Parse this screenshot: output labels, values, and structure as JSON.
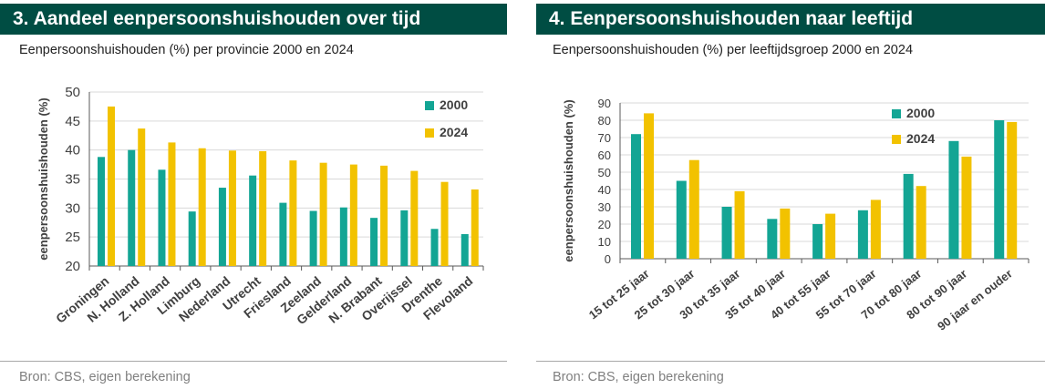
{
  "colors": {
    "header_bg": "#004d43",
    "series_2000": "#13a594",
    "series_2024": "#f2c200",
    "grid": "#d9d9d9",
    "axis": "#595959",
    "tick_text": "#404040"
  },
  "panels": [
    {
      "header": "3. Aandeel eenpersoonshuishouden over tijd",
      "subtitle": "Eenpersoonshuishouden (%) per provincie 2000 en 2024",
      "source": "Bron: CBS, eigen berekening"
    },
    {
      "header": "4. Eenpersoonshuishouden naar leeftijd",
      "subtitle": "Eenpersoonshuishouden (%) per leeftijdsgroep 2000 en 2024",
      "source": "Bron: CBS, eigen berekening"
    }
  ],
  "chart_data": [
    {
      "type": "bar",
      "title": "3. Aandeel eenpersoonshuishouden over tijd",
      "subtitle": "Eenpersoonshuishouden (%) per provincie 2000 en 2024",
      "xlabel": "",
      "ylabel": "eenpersoonshuishouden (%)",
      "ylim": [
        20,
        50
      ],
      "yticks": [
        20,
        25,
        30,
        35,
        40,
        45,
        50
      ],
      "grid": true,
      "legend": "top-right",
      "categories": [
        "Groningen",
        "N. Holland",
        "Z. Holland",
        "Limburg",
        "Nederland",
        "Utrecht",
        "Friesland",
        "Zeeland",
        "Gelderland",
        "N. Brabant",
        "Overijssel",
        "Drenthe",
        "Flevoland"
      ],
      "series": [
        {
          "name": "2000",
          "values": [
            38.8,
            40.0,
            36.6,
            29.4,
            33.5,
            35.6,
            30.9,
            29.5,
            30.1,
            28.3,
            29.6,
            26.4,
            25.5
          ]
        },
        {
          "name": "2024",
          "values": [
            47.5,
            43.7,
            41.3,
            40.3,
            39.9,
            39.8,
            38.2,
            37.8,
            37.5,
            37.3,
            36.4,
            34.5,
            33.2
          ]
        }
      ]
    },
    {
      "type": "bar",
      "title": "4. Eenpersoonshuishouden naar leeftijd",
      "subtitle": "Eenpersoonshuishouden (%) per leeftijdsgroep 2000 en 2024",
      "xlabel": "",
      "ylabel": "eenpersoonshuishouden (%)",
      "ylim": [
        0,
        90
      ],
      "yticks": [
        0,
        10,
        20,
        30,
        40,
        50,
        60,
        70,
        80,
        90
      ],
      "grid": true,
      "legend": "top-right",
      "categories": [
        "15 tot 25 jaar",
        "25 tot 30 jaar",
        "30 tot 35 jaar",
        "35 tot 40 jaar",
        "40 tot 55 jaar",
        "55 tot 70 jaar",
        "70 tot 80 jaar",
        "80 tot 90 jaar",
        "90 jaar en ouder"
      ],
      "series": [
        {
          "name": "2000",
          "values": [
            72,
            45,
            30,
            23,
            20,
            28,
            49,
            68,
            80
          ]
        },
        {
          "name": "2024",
          "values": [
            84,
            57,
            39,
            29,
            26,
            34,
            42,
            59,
            79
          ]
        }
      ]
    }
  ]
}
